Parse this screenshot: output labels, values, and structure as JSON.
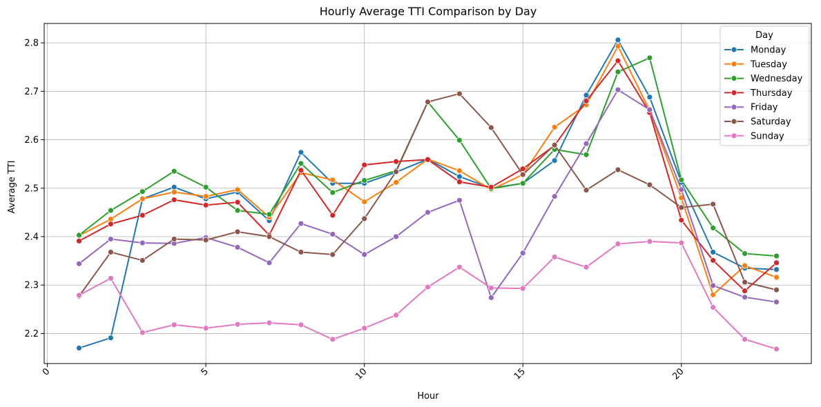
{
  "chart_data": {
    "type": "line",
    "title": "Hourly Average TTI Comparison by Day",
    "xlabel": "Hour",
    "ylabel": "Average TTI",
    "xlim": [
      -0.1,
      24.1
    ],
    "ylim": [
      2.138,
      2.84
    ],
    "xticks": [
      0,
      5,
      10,
      15,
      20
    ],
    "yticks": [
      2.2,
      2.3,
      2.4,
      2.5,
      2.6,
      2.7,
      2.8
    ],
    "grid": true,
    "legend": {
      "title": "Day",
      "placement": "top-right"
    },
    "x": [
      1,
      2,
      3,
      4,
      5,
      6,
      7,
      8,
      9,
      10,
      11,
      12,
      13,
      14,
      15,
      16,
      17,
      18,
      19,
      20,
      21,
      22,
      23
    ],
    "series": [
      {
        "name": "Monday",
        "color": "#1f77b4",
        "values": [
          2.17,
          2.191,
          2.478,
          2.502,
          2.478,
          2.492,
          2.433,
          2.574,
          2.51,
          2.51,
          2.533,
          2.56,
          2.524,
          2.5,
          2.51,
          2.557,
          2.692,
          2.806,
          2.688,
          2.512,
          2.368,
          2.335,
          2.332
        ]
      },
      {
        "name": "Tuesday",
        "color": "#ff7f0e",
        "values": [
          2.402,
          2.436,
          2.478,
          2.492,
          2.483,
          2.497,
          2.44,
          2.532,
          2.517,
          2.472,
          2.512,
          2.56,
          2.536,
          2.497,
          2.528,
          2.626,
          2.672,
          2.793,
          2.66,
          2.48,
          2.28,
          2.34,
          2.316
        ]
      },
      {
        "name": "Wednesday",
        "color": "#2ca02c",
        "values": [
          2.403,
          2.454,
          2.493,
          2.535,
          2.502,
          2.454,
          2.446,
          2.551,
          2.491,
          2.516,
          2.536,
          2.678,
          2.599,
          2.499,
          2.51,
          2.58,
          2.569,
          2.74,
          2.769,
          2.517,
          2.418,
          2.365,
          2.36
        ]
      },
      {
        "name": "Thursday",
        "color": "#d62728",
        "values": [
          2.391,
          2.426,
          2.444,
          2.476,
          2.465,
          2.471,
          2.403,
          2.537,
          2.444,
          2.548,
          2.555,
          2.559,
          2.513,
          2.502,
          2.54,
          2.588,
          2.68,
          2.763,
          2.656,
          2.434,
          2.351,
          2.288,
          2.346
        ]
      },
      {
        "name": "Friday",
        "color": "#9467bd",
        "values": [
          2.344,
          2.395,
          2.387,
          2.386,
          2.398,
          2.378,
          2.346,
          2.427,
          2.405,
          2.363,
          2.4,
          2.45,
          2.475,
          2.274,
          2.366,
          2.483,
          2.592,
          2.703,
          2.662,
          2.497,
          2.299,
          2.275,
          2.265
        ]
      },
      {
        "name": "Saturday",
        "color": "#8c564b",
        "values": [
          2.277,
          2.368,
          2.351,
          2.395,
          2.393,
          2.41,
          2.4,
          2.368,
          2.363,
          2.437,
          2.534,
          2.678,
          2.695,
          2.625,
          2.528,
          2.589,
          2.496,
          2.538,
          2.507,
          2.46,
          2.467,
          2.306,
          2.29
        ]
      },
      {
        "name": "Sunday",
        "color": "#e377c2",
        "values": [
          2.279,
          2.314,
          2.202,
          2.218,
          2.211,
          2.219,
          2.222,
          2.218,
          2.188,
          2.211,
          2.238,
          2.296,
          2.337,
          2.294,
          2.293,
          2.358,
          2.337,
          2.385,
          2.39,
          2.387,
          2.254,
          2.188,
          2.168
        ]
      }
    ]
  }
}
